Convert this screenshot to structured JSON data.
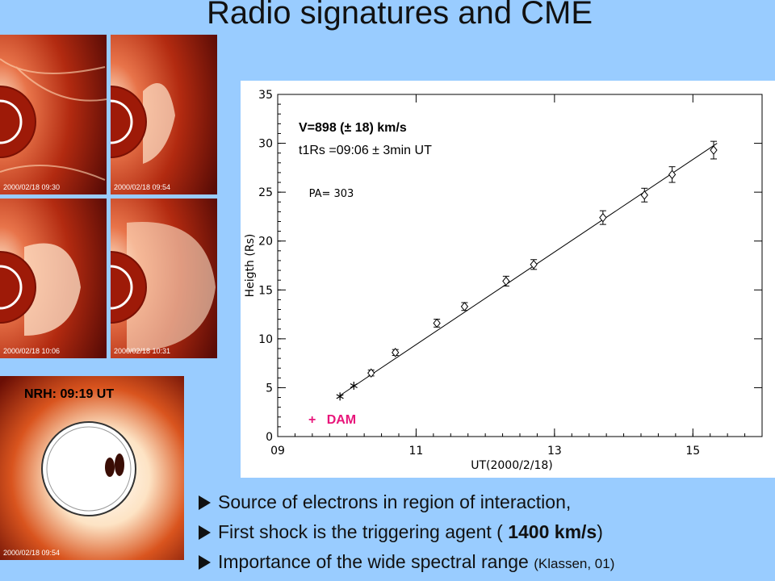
{
  "slide": {
    "title": "Radio signatures and CME"
  },
  "images": {
    "lasco_stamps": [
      "2000/02/18  09:30",
      "2000/02/18  09:54",
      "2000/02/18  10:06",
      "2000/02/18  10:31"
    ],
    "nrh_stamp": "2000/02/18 09:54",
    "nrh_label": "NRH: 09:19 UT"
  },
  "annotation": {
    "velocity": "V=898 (± 18) km/s",
    "t1rs": "t1Rs =09:06 ± 3min UT",
    "dam_marker": "+",
    "dam_label": "DAM"
  },
  "bullets": [
    {
      "text": "Source of electrons in region of interaction,"
    },
    {
      "pre": "First shock is the triggering agent ( ",
      "bold": "1400 km/s",
      "post": ")"
    },
    {
      "pre": "Importance of the wide spectral range ",
      "small": "(Klassen, 01)"
    }
  ],
  "chart_data": {
    "type": "scatter",
    "xlabel": "UT(2000/2/18)",
    "ylabel": "Heigth (Rs)",
    "pa_label": "PA= 303",
    "xlim": [
      9,
      16
    ],
    "ylim": [
      0,
      35
    ],
    "xticks": [
      "09",
      "11",
      "13",
      "15"
    ],
    "yticks": [
      "0",
      "5",
      "10",
      "15",
      "20",
      "25",
      "30",
      "35"
    ],
    "fit_line": {
      "x": [
        9.9,
        15.35
      ],
      "y": [
        4.2,
        30.0
      ]
    },
    "series": [
      {
        "marker": "diamond-errorbar",
        "points": [
          {
            "x": 10.35,
            "y": 6.5,
            "err": 0.3
          },
          {
            "x": 10.7,
            "y": 8.6,
            "err": 0.3
          },
          {
            "x": 11.3,
            "y": 11.6,
            "err": 0.4
          },
          {
            "x": 11.7,
            "y": 13.3,
            "err": 0.4
          },
          {
            "x": 12.3,
            "y": 15.9,
            "err": 0.5
          },
          {
            "x": 12.7,
            "y": 17.6,
            "err": 0.5
          },
          {
            "x": 13.7,
            "y": 22.4,
            "err": 0.7
          },
          {
            "x": 14.3,
            "y": 24.7,
            "err": 0.7
          },
          {
            "x": 14.7,
            "y": 26.8,
            "err": 0.8
          },
          {
            "x": 15.3,
            "y": 29.3,
            "err": 0.9
          }
        ]
      },
      {
        "marker": "asterisk",
        "points": [
          {
            "x": 9.9,
            "y": 4.1
          },
          {
            "x": 10.1,
            "y": 5.2
          }
        ]
      },
      {
        "marker": "plus",
        "color": "#e8157a",
        "points": [
          {
            "x": 9.5,
            "y": 1.4
          }
        ]
      }
    ]
  }
}
